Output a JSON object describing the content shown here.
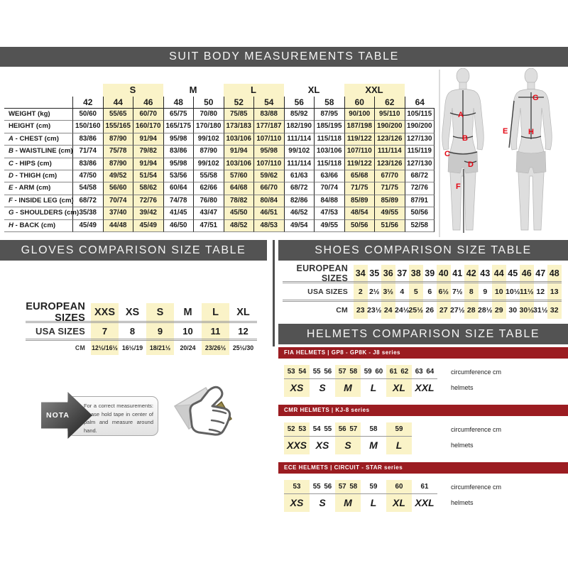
{
  "colors": {
    "bar_gray": "#535353",
    "bar_red": "#9b1c21",
    "highlight_yellow": "#faf3c8",
    "figure_label_red": "#e30613"
  },
  "suit": {
    "title": "SUIT BODY MEASUREMENTS TABLE",
    "groups": [
      {
        "label": "",
        "span": 1,
        "hl": false
      },
      {
        "label": "S",
        "span": 2,
        "hl": true
      },
      {
        "label": "M",
        "span": 2,
        "hl": false
      },
      {
        "label": "L",
        "span": 2,
        "hl": true
      },
      {
        "label": "XL",
        "span": 2,
        "hl": false
      },
      {
        "label": "XXL",
        "span": 2,
        "hl": true
      },
      {
        "label": "",
        "span": 1,
        "hl": false
      }
    ],
    "sizes": [
      "42",
      "44",
      "46",
      "48",
      "50",
      "52",
      "54",
      "56",
      "58",
      "60",
      "62",
      "64"
    ],
    "hl_cols": [
      1,
      2,
      5,
      6,
      9,
      10
    ],
    "rows": [
      {
        "letter": "",
        "name": "WEIGHT (kg)",
        "values": [
          "50/60",
          "55/65",
          "60/70",
          "65/75",
          "70/80",
          "75/85",
          "83/88",
          "85/92",
          "87/95",
          "90/100",
          "95/110",
          "105/115"
        ]
      },
      {
        "letter": "",
        "name": "HEIGHT (cm)",
        "values": [
          "150/160",
          "155/165",
          "160/170",
          "165/175",
          "170/180",
          "173/183",
          "177/187",
          "182/190",
          "185/195",
          "187/198",
          "190/200",
          "190/200"
        ]
      },
      {
        "letter": "A",
        "name": "CHEST (cm)",
        "values": [
          "83/86",
          "87/90",
          "91/94",
          "95/98",
          "99/102",
          "103/106",
          "107/110",
          "111/114",
          "115/118",
          "119/122",
          "123/126",
          "127/130"
        ]
      },
      {
        "letter": "B",
        "name": "WAISTLINE (cm)",
        "values": [
          "71/74",
          "75/78",
          "79/82",
          "83/86",
          "87/90",
          "91/94",
          "95/98",
          "99/102",
          "103/106",
          "107/110",
          "111/114",
          "115/119"
        ]
      },
      {
        "letter": "C",
        "name": "HIPS (cm)",
        "values": [
          "83/86",
          "87/90",
          "91/94",
          "95/98",
          "99/102",
          "103/106",
          "107/110",
          "111/114",
          "115/118",
          "119/122",
          "123/126",
          "127/130"
        ]
      },
      {
        "letter": "D",
        "name": "THIGH (cm)",
        "values": [
          "47/50",
          "49/52",
          "51/54",
          "53/56",
          "55/58",
          "57/60",
          "59/62",
          "61/63",
          "63/66",
          "65/68",
          "67/70",
          "68/72"
        ]
      },
      {
        "letter": "E",
        "name": "ARM (cm)",
        "values": [
          "54/58",
          "56/60",
          "58/62",
          "60/64",
          "62/66",
          "64/68",
          "66/70",
          "68/72",
          "70/74",
          "71/75",
          "71/75",
          "72/76"
        ]
      },
      {
        "letter": "F",
        "name": "INSIDE LEG (cm)",
        "values": [
          "68/72",
          "70/74",
          "72/76",
          "74/78",
          "76/80",
          "78/82",
          "80/84",
          "82/86",
          "84/88",
          "85/89",
          "85/89",
          "87/91"
        ]
      },
      {
        "letter": "G",
        "name": "SHOULDERS (cm)",
        "values": [
          "35/38",
          "37/40",
          "39/42",
          "41/45",
          "43/47",
          "45/50",
          "46/51",
          "46/52",
          "47/53",
          "48/54",
          "49/55",
          "50/56"
        ]
      },
      {
        "letter": "H",
        "name": "BACK (cm)",
        "values": [
          "45/49",
          "44/48",
          "45/49",
          "46/50",
          "47/51",
          "48/52",
          "48/53",
          "49/54",
          "49/55",
          "50/56",
          "51/56",
          "52/58"
        ]
      }
    ]
  },
  "figures": {
    "labels": {
      "chest": "A",
      "waist": "B",
      "hips": "C",
      "thigh": "D",
      "inside_leg": "F",
      "shoulders": "G",
      "arm": "E",
      "back": "H"
    }
  },
  "gloves": {
    "title": "GLOVES COMPARISON SIZE TABLE",
    "hl_cols": [
      0,
      2,
      4
    ],
    "rows": [
      {
        "label": "EUROPEAN SIZES",
        "values": [
          "XXS",
          "XS",
          "S",
          "M",
          "L",
          "XL"
        ]
      },
      {
        "label": "USA SIZES",
        "values": [
          "7",
          "8",
          "9",
          "10",
          "11",
          "12"
        ]
      },
      {
        "label": "CM",
        "values": [
          "12½/16½",
          "16½/19",
          "18/21½",
          "20/24",
          "23/26½",
          "25½/30"
        ]
      }
    ]
  },
  "shoes": {
    "title": "SHOES COMPARISON SIZE TABLE",
    "hl_cols": [
      0,
      2,
      4,
      6,
      8,
      10,
      12,
      14
    ],
    "rows": [
      {
        "label": "EUROPEAN SIZES",
        "values": [
          "34",
          "35",
          "36",
          "37",
          "38",
          "39",
          "40",
          "41",
          "42",
          "43",
          "44",
          "45",
          "46",
          "47",
          "48"
        ]
      },
      {
        "label": "USA SIZES",
        "values": [
          "2",
          "2½",
          "3½",
          "4",
          "5",
          "6",
          "6½",
          "7½",
          "8",
          "9",
          "10",
          "10½",
          "11½",
          "12",
          "13"
        ]
      },
      {
        "label": "CM",
        "values": [
          "23",
          "23½",
          "24",
          "24½",
          "25½",
          "26",
          "27",
          "27½",
          "28",
          "28½",
          "29",
          "30",
          "30½",
          "31½",
          "32"
        ]
      }
    ]
  },
  "helmets": {
    "title": "HELMETS COMPARISON SIZE TABLE",
    "circ_label": "circumference cm",
    "helmets_label": "helmets",
    "sections": [
      {
        "series": "FIA HELMETS | GP8 - GP8K - J8 series",
        "groups": [
          {
            "cms": [
              "53",
              "54"
            ],
            "size": "XS",
            "hl": true
          },
          {
            "cms": [
              "55",
              "56"
            ],
            "size": "S",
            "hl": false
          },
          {
            "cms": [
              "57",
              "58"
            ],
            "size": "M",
            "hl": true
          },
          {
            "cms": [
              "59",
              "60"
            ],
            "size": "L",
            "hl": false
          },
          {
            "cms": [
              "61",
              "62"
            ],
            "size": "XL",
            "hl": true
          },
          {
            "cms": [
              "63",
              "64"
            ],
            "size": "XXL",
            "hl": false
          }
        ]
      },
      {
        "series": "CMR HELMETS | KJ-8 series",
        "groups": [
          {
            "cms": [
              "52",
              "53"
            ],
            "size": "XXS",
            "hl": true
          },
          {
            "cms": [
              "54",
              "55"
            ],
            "size": "XS",
            "hl": false
          },
          {
            "cms": [
              "56",
              "57"
            ],
            "size": "S",
            "hl": true
          },
          {
            "cms": [
              "58"
            ],
            "size": "M",
            "hl": false
          },
          {
            "cms": [
              "59"
            ],
            "size": "L",
            "hl": true
          }
        ]
      },
      {
        "series": "ECE HELMETS | CIRCUIT - STAR series",
        "groups": [
          {
            "cms": [
              "53"
            ],
            "size": "XS",
            "hl": true
          },
          {
            "cms": [
              "55",
              "56"
            ],
            "size": "S",
            "hl": false
          },
          {
            "cms": [
              "57",
              "58"
            ],
            "size": "M",
            "hl": true
          },
          {
            "cms": [
              "59"
            ],
            "size": "L",
            "hl": false
          },
          {
            "cms": [
              "60"
            ],
            "size": "XL",
            "hl": true
          },
          {
            "cms": [
              "61"
            ],
            "size": "XXL",
            "hl": false
          }
        ]
      }
    ]
  },
  "note": {
    "badge": "NOTA",
    "text": "For a correct measurements: please hold tape in center of palm and measure around hand."
  }
}
